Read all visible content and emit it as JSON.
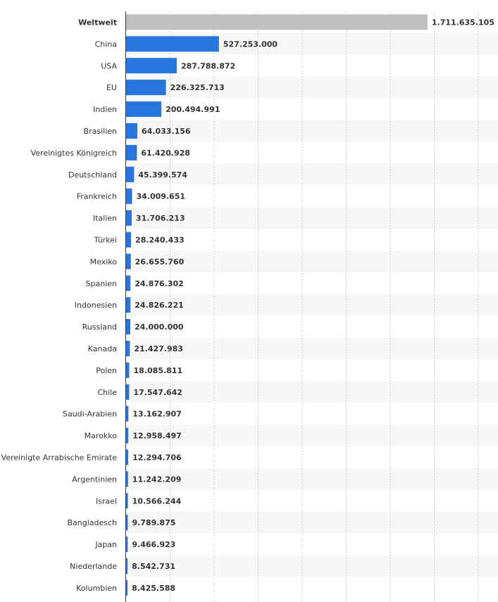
{
  "chart_data": {
    "type": "bar",
    "orientation": "horizontal",
    "categories": [
      "Weltweit",
      "China",
      "USA",
      "EU",
      "Indien",
      "Brasilien",
      "Vereinigtes Königreich",
      "Deutschland",
      "Frankreich",
      "Italien",
      "Türkei",
      "Mexiko",
      "Spanien",
      "Indonesien",
      "Russland",
      "Kanada",
      "Polen",
      "Chile",
      "Saudi-Arabien",
      "Marokko",
      "Vereinigte Arrabische Emirate",
      "Argentinien",
      "Israel",
      "Bangladesch",
      "Japan",
      "Niederlande",
      "Kolumbien"
    ],
    "values": [
      1711635105,
      527253000,
      287788872,
      226325713,
      200494991,
      64033156,
      61420928,
      45399574,
      34009651,
      31706213,
      28240433,
      26655760,
      24876302,
      24826221,
      24000000,
      21427983,
      18085811,
      17547642,
      13162907,
      12958497,
      12294706,
      11242209,
      10566244,
      9789875,
      9466923,
      8542731,
      8425588
    ],
    "value_labels": [
      "1.711.635.105",
      "527.253.000",
      "287.788.872",
      "226.325.713",
      "200.494.991",
      "64.033.156",
      "61.420.928",
      "45.399.574",
      "34.009.651",
      "31.706.213",
      "28.240.433",
      "26.655.760",
      "24.876.302",
      "24.826.221",
      "24.000.000",
      "21.427.983",
      "18.085.811",
      "17.547.642",
      "13.162.907",
      "12.958.497",
      "12.294.706",
      "11.242.209",
      "10.566.244",
      "9.789.875",
      "9.466.923",
      "8.542.731",
      "8.425.588"
    ],
    "highlight_category": "Weltweit",
    "xlim": [
      0,
      2000000000
    ],
    "grid": true,
    "colors": {
      "bar": "#2876dd",
      "highlight": "#bfbfbf"
    }
  }
}
